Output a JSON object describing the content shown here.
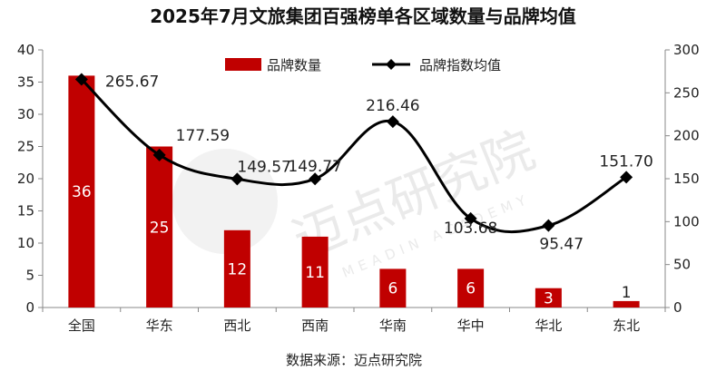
{
  "chart_data": {
    "type": "bar+line",
    "title": "2025年7月文旅集团百强榜单各区域数量与品牌均值",
    "categories": [
      "全国",
      "华东",
      "西北",
      "西南",
      "华南",
      "华中",
      "华北",
      "东北"
    ],
    "series": [
      {
        "name": "品牌数量",
        "type": "bar",
        "axis": "left",
        "values": [
          36,
          25,
          12,
          11,
          6,
          6,
          3,
          1
        ],
        "color": "#c00000"
      },
      {
        "name": "品牌指数均值",
        "type": "line",
        "axis": "right",
        "values": [
          265.67,
          177.59,
          149.57,
          149.77,
          216.46,
          103.68,
          95.47,
          151.7
        ],
        "labels": [
          "265.67",
          "177.59",
          "149.57",
          "149.77",
          "216.46",
          "103.68",
          "95.47",
          "151.70"
        ],
        "color": "#000000"
      }
    ],
    "y_left": {
      "min": 0,
      "max": 40,
      "ticks": [
        0,
        5,
        10,
        15,
        20,
        25,
        30,
        35,
        40
      ]
    },
    "y_right": {
      "min": 0,
      "max": 300,
      "ticks": [
        0,
        50,
        100,
        150,
        200,
        250,
        300
      ]
    },
    "legend_position": "top-center",
    "grid": false
  },
  "source_text": "数据来源：迈点研究院",
  "watermark": {
    "text": "迈点研究院",
    "subtext": "MEADIN ACADEMY"
  }
}
